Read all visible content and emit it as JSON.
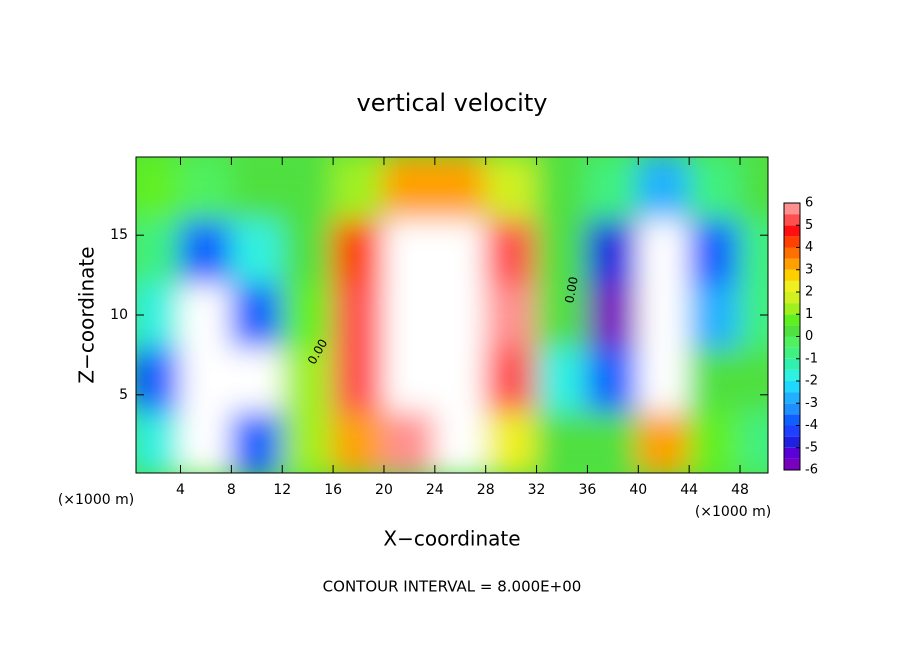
{
  "chart_data": {
    "type": "heatmap",
    "title": "vertical velocity",
    "x_label": "X−coordinate",
    "y_label": "Z−coordinate",
    "x_unit_left": "(×1000 m)",
    "x_unit_right": "(×1000 m)",
    "footer": "CONTOUR INTERVAL = 8.000E+00",
    "contour_labels": [
      "0.00",
      "0.00"
    ],
    "xlim": [
      0.5,
      50.2
    ],
    "ylim": [
      0.1,
      19.9
    ],
    "xticks": [
      4,
      8,
      12,
      16,
      20,
      24,
      28,
      32,
      36,
      40,
      44,
      48
    ],
    "yticks": [
      5,
      10,
      15
    ],
    "x": [
      2,
      6,
      10,
      14,
      18,
      22,
      26,
      30,
      34,
      38,
      42,
      46,
      50
    ],
    "y": [
      2,
      6,
      10,
      14,
      18
    ],
    "z": [
      [
        -2,
        -7,
        -4,
        1,
        3,
        6,
        7,
        2,
        0,
        0,
        3,
        0.5,
        -1
      ],
      [
        -4,
        -9,
        -7,
        1,
        5,
        9,
        10,
        5,
        -2,
        -4,
        -8,
        0,
        0
      ],
      [
        -2,
        -8,
        -4,
        0.5,
        5,
        9,
        9,
        6,
        0,
        -6,
        -9,
        -3,
        -1
      ],
      [
        -1,
        -4,
        -2,
        0,
        4,
        8,
        8,
        5,
        0,
        -5,
        -8,
        -4,
        -1
      ],
      [
        0.5,
        -0.5,
        0,
        0,
        1,
        3,
        3,
        1.5,
        0,
        -1,
        -3,
        -1,
        0
      ]
    ],
    "colorbar": {
      "ticks": [
        -6,
        -5,
        -4,
        -3,
        -2,
        -1,
        0,
        1,
        2,
        3,
        4,
        5,
        6
      ],
      "lim": [
        -6,
        6
      ],
      "step": 0.5,
      "colors": [
        "#7a00c0",
        "#5a00d8",
        "#2020e0",
        "#2040ff",
        "#1060ff",
        "#2090ff",
        "#20b0ff",
        "#20d8ff",
        "#30f0e0",
        "#30f0b0",
        "#40f080",
        "#50f060",
        "#50e040",
        "#60f020",
        "#a0f020",
        "#d0f020",
        "#f0f020",
        "#ffd000",
        "#ffa000",
        "#ff7000",
        "#ff4000",
        "#ff1010",
        "#ff5050",
        "#ff9090"
      ],
      "over_color": "#ffffff"
    }
  }
}
